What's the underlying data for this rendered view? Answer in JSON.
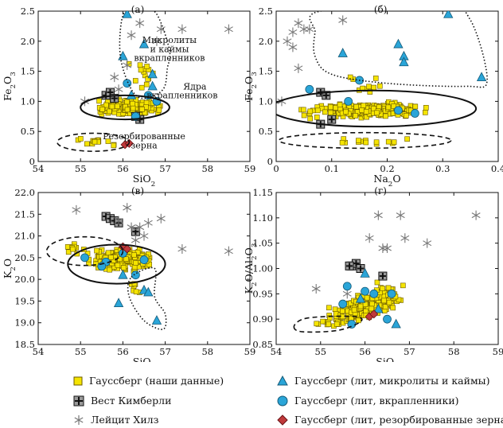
{
  "colors": {
    "yellow": "#f5e400",
    "yellow_edge": "#6b5a00",
    "blue": "#2aa5d8",
    "blue_edge": "#145a78",
    "red": "#c0393b",
    "gray": "#777777"
  },
  "chart_data": [
    {
      "type": "scatter",
      "panel_label": "(а)",
      "xlabel": "SiO2",
      "ylabel": "Fe2O3",
      "xlim": [
        54,
        59
      ],
      "ylim": [
        0,
        2.5
      ],
      "xticks": [
        "54",
        "55",
        "56",
        "57",
        "58",
        "59"
      ],
      "yticks": [
        "0",
        "0.5",
        "1.0",
        "1.5",
        "2.0",
        "2.5"
      ],
      "annotations": [
        {
          "text": "Микролиты",
          "x": 57.1,
          "y": 1.97
        },
        {
          "text": "и каймы",
          "x": 57.1,
          "y": 1.82
        },
        {
          "text": "вкрапленников",
          "x": 57.1,
          "y": 1.67
        },
        {
          "text": "Ядра",
          "x": 57.7,
          "y": 1.2
        },
        {
          "text": "вкрапленников",
          "x": 57.4,
          "y": 1.05
        },
        {
          "text": "Резорбированные",
          "x": 56.5,
          "y": 0.37
        },
        {
          "text": "зерна",
          "x": 56.5,
          "y": 0.22
        }
      ],
      "series": [
        {
          "key": "kimberley",
          "points": [
            [
              55.6,
              1.1
            ],
            [
              55.7,
              1.15
            ],
            [
              55.8,
              1.05
            ],
            [
              56.4,
              0.7
            ],
            [
              56.3,
              0.75
            ]
          ]
        },
        {
          "key": "leucite",
          "points": [
            [
              56.4,
              2.3
            ],
            [
              56.2,
              2.1
            ],
            [
              55.8,
              1.4
            ],
            [
              56.5,
              2.6
            ],
            [
              56.9,
              2.2
            ],
            [
              57.4,
              2.2
            ],
            [
              58.5,
              2.2
            ],
            [
              55.1,
              1.0
            ],
            [
              56.1,
              1.6
            ],
            [
              55.9,
              1.2
            ],
            [
              56.8,
              2.0
            ]
          ]
        },
        {
          "key": "micro",
          "points": [
            [
              56.1,
              2.45
            ],
            [
              56.0,
              1.75
            ],
            [
              56.5,
              1.95
            ],
            [
              56.7,
              1.45
            ],
            [
              56.7,
              1.25
            ],
            [
              56.2,
              1.1
            ]
          ]
        },
        {
          "key": "pheno",
          "points": [
            [
              56.1,
              1.3
            ],
            [
              56.6,
              1.1
            ],
            [
              56.3,
              0.75
            ],
            [
              56.8,
              1.0
            ]
          ]
        },
        {
          "key": "resorb",
          "points": [
            [
              56.05,
              0.28
            ],
            [
              56.15,
              0.3
            ]
          ]
        }
      ],
      "envelopes": [
        {
          "kind": "dotted",
          "shape": "polygon",
          "points": [
            [
              56.1,
              2.55
            ],
            [
              56.45,
              2.55
            ],
            [
              56.8,
              2.45
            ],
            [
              57.1,
              1.85
            ],
            [
              57.05,
              1.55
            ],
            [
              56.95,
              1.2
            ],
            [
              56.5,
              1.05
            ],
            [
              56.2,
              1.2
            ],
            [
              55.95,
              1.7
            ],
            [
              55.95,
              2.25
            ]
          ]
        },
        {
          "kind": "solid",
          "shape": "ellipse",
          "cx": 56.05,
          "cy": 0.9,
          "rx": 1.05,
          "ry": 0.2
        },
        {
          "kind": "dashed",
          "shape": "ellipse",
          "cx": 55.3,
          "cy": 0.32,
          "rx": 0.85,
          "ry": 0.15
        }
      ],
      "yellow_cloud": {
        "core": {
          "cx": 56.1,
          "cy": 0.9,
          "rx": 0.9,
          "ry": 0.17,
          "n": 230
        },
        "extra": {
          "cx": 56.4,
          "cy": 1.55,
          "rx": 0.45,
          "ry": 0.45,
          "n": 14
        },
        "low": {
          "cx": 55.3,
          "cy": 0.33,
          "rx": 0.7,
          "ry": 0.1,
          "n": 14
        }
      }
    },
    {
      "type": "scatter",
      "panel_label": "(б)",
      "xlabel": "Na2O",
      "ylabel": "Fe2O3",
      "xlim": [
        0,
        0.4
      ],
      "ylim": [
        0,
        2.5
      ],
      "xticks": [
        "0",
        "0.1",
        "0.2",
        "0.3",
        "0.4"
      ],
      "yticks": [
        "0",
        "0.5",
        "1.0",
        "1.5",
        "2.0",
        "2.5"
      ],
      "annotations": [],
      "series": [
        {
          "key": "kimberley",
          "points": [
            [
              0.08,
              1.15
            ],
            [
              0.09,
              1.1
            ],
            [
              0.1,
              0.7
            ],
            [
              0.08,
              0.62
            ]
          ]
        },
        {
          "key": "leucite",
          "points": [
            [
              0.03,
              2.15
            ],
            [
              0.04,
              2.3
            ],
            [
              0.05,
              2.2
            ],
            [
              0.06,
              2.2
            ],
            [
              0.12,
              2.35
            ],
            [
              0.04,
              1.55
            ],
            [
              0.02,
              2.0
            ],
            [
              0.01,
              1.0
            ],
            [
              0.03,
              1.9
            ]
          ]
        },
        {
          "key": "micro",
          "points": [
            [
              0.31,
              2.45
            ],
            [
              0.22,
              1.95
            ],
            [
              0.23,
              1.75
            ],
            [
              0.37,
              1.4
            ],
            [
              0.23,
              1.65
            ],
            [
              0.12,
              1.8
            ]
          ]
        },
        {
          "key": "pheno",
          "points": [
            [
              0.06,
              1.2
            ],
            [
              0.15,
              1.35
            ],
            [
              0.22,
              0.85
            ],
            [
              0.25,
              0.8
            ],
            [
              0.13,
              1.0
            ]
          ]
        },
        {
          "key": "resorb",
          "points": []
        }
      ],
      "envelopes": [
        {
          "kind": "dotted",
          "shape": "polygon",
          "points": [
            [
              0.08,
              2.5
            ],
            [
              0.3,
              2.55
            ],
            [
              0.35,
              2.35
            ],
            [
              0.38,
              1.35
            ],
            [
              0.34,
              1.25
            ],
            [
              0.2,
              1.3
            ],
            [
              0.1,
              1.45
            ],
            [
              0.07,
              1.75
            ],
            [
              0.07,
              2.15
            ]
          ]
        },
        {
          "kind": "solid",
          "shape": "ellipse",
          "cx": 0.175,
          "cy": 0.88,
          "rx": 0.185,
          "ry": 0.3
        },
        {
          "kind": "dashed",
          "shape": "ellipse",
          "cx": 0.16,
          "cy": 0.35,
          "rx": 0.155,
          "ry": 0.13
        }
      ],
      "yellow_cloud": {
        "core": {
          "cx": 0.16,
          "cy": 0.85,
          "rx": 0.14,
          "ry": 0.17,
          "n": 230
        },
        "extra": {
          "cx": 0.15,
          "cy": 1.3,
          "rx": 0.08,
          "ry": 0.25,
          "n": 10
        },
        "low": {
          "cx": 0.16,
          "cy": 0.33,
          "rx": 0.11,
          "ry": 0.07,
          "n": 14
        }
      }
    },
    {
      "type": "scatter",
      "panel_label": "(в)",
      "xlabel": "SiO2",
      "ylabel": "K2O",
      "xlim": [
        54,
        59
      ],
      "ylim": [
        18.5,
        22.0
      ],
      "xticks": [
        "54",
        "55",
        "56",
        "57",
        "58",
        "59"
      ],
      "yticks": [
        "18.5",
        "19.0",
        "19.5",
        "20.0",
        "20.5",
        "21.0",
        "21.5",
        "22.0"
      ],
      "annotations": [],
      "series": [
        {
          "key": "kimberley",
          "points": [
            [
              55.6,
              21.45
            ],
            [
              55.7,
              21.4
            ],
            [
              55.8,
              21.35
            ],
            [
              55.9,
              21.3
            ],
            [
              56.3,
              21.1
            ]
          ]
        },
        {
          "key": "leucite",
          "points": [
            [
              54.9,
              21.6
            ],
            [
              55.9,
              21.35
            ],
            [
              56.2,
              21.2
            ],
            [
              56.4,
              21.2
            ],
            [
              56.5,
              21.0
            ],
            [
              56.9,
              21.4
            ],
            [
              57.4,
              20.7
            ],
            [
              58.5,
              20.65
            ],
            [
              56.1,
              21.65
            ],
            [
              56.3,
              20.9
            ],
            [
              56.6,
              21.3
            ]
          ]
        },
        {
          "key": "micro",
          "points": [
            [
              56.5,
              19.75
            ],
            [
              56.6,
              19.7
            ],
            [
              55.9,
              19.45
            ],
            [
              56.8,
              19.05
            ],
            [
              56.0,
              20.1
            ]
          ]
        },
        {
          "key": "pheno",
          "points": [
            [
              55.1,
              20.5
            ],
            [
              55.6,
              20.4
            ],
            [
              56.0,
              20.6
            ],
            [
              56.3,
              20.1
            ],
            [
              56.5,
              20.45
            ],
            [
              55.5,
              20.3
            ]
          ]
        },
        {
          "key": "resorb",
          "points": [
            [
              56.0,
              20.75
            ],
            [
              56.1,
              20.7
            ]
          ]
        }
      ],
      "envelopes": [
        {
          "kind": "dashed",
          "shape": "ellipse",
          "cx": 55.1,
          "cy": 20.65,
          "rx": 0.9,
          "ry": 0.33
        },
        {
          "kind": "solid",
          "shape": "ellipse",
          "cx": 55.85,
          "cy": 20.35,
          "rx": 1.15,
          "ry": 0.45
        },
        {
          "kind": "dotted",
          "shape": "polygon",
          "points": [
            [
              56.2,
              20.05
            ],
            [
              56.75,
              20.25
            ],
            [
              56.75,
              19.6
            ],
            [
              57.0,
              19.2
            ],
            [
              56.95,
              18.85
            ],
            [
              56.5,
              19.05
            ],
            [
              56.15,
              19.6
            ]
          ]
        }
      ],
      "yellow_cloud": {
        "core": {
          "cx": 55.9,
          "cy": 20.45,
          "rx": 0.95,
          "ry": 0.3,
          "n": 230
        },
        "extra": {
          "cx": 55.0,
          "cy": 20.7,
          "rx": 0.5,
          "ry": 0.15,
          "n": 12
        },
        "low": {
          "cx": 56.3,
          "cy": 19.8,
          "rx": 0.3,
          "ry": 0.2,
          "n": 8
        }
      }
    },
    {
      "type": "scatter",
      "panel_label": "(г)",
      "xlabel": "SiO2",
      "ylabel": "K2O/Al2O3",
      "xlim": [
        54,
        59
      ],
      "ylim": [
        0.85,
        1.15
      ],
      "xticks": [
        "54",
        "55",
        "56",
        "57",
        "58",
        "59"
      ],
      "yticks": [
        "0.85",
        "0.90",
        "0.95",
        "1.00",
        "1.05",
        "1.10",
        "1.15"
      ],
      "annotations": [],
      "series": [
        {
          "key": "kimberley",
          "points": [
            [
              55.7,
              1.005
            ],
            [
              55.8,
              1.01
            ],
            [
              55.9,
              1.0
            ],
            [
              56.4,
              0.985
            ],
            [
              55.65,
              1.005
            ]
          ]
        },
        {
          "key": "leucite",
          "points": [
            [
              56.3,
              1.105
            ],
            [
              56.8,
              1.105
            ],
            [
              58.5,
              1.105
            ],
            [
              56.1,
              1.06
            ],
            [
              56.5,
              1.04
            ],
            [
              56.9,
              1.06
            ],
            [
              57.4,
              1.05
            ],
            [
              54.9,
              0.96
            ],
            [
              56.4,
              1.04
            ],
            [
              55.6,
              0.95
            ]
          ]
        },
        {
          "key": "micro",
          "points": [
            [
              56.0,
              0.99
            ],
            [
              56.7,
              0.89
            ],
            [
              55.9,
              0.94
            ],
            [
              56.3,
              0.92
            ]
          ]
        },
        {
          "key": "pheno",
          "points": [
            [
              55.6,
              0.965
            ],
            [
              55.5,
              0.93
            ],
            [
              56.0,
              0.955
            ],
            [
              56.2,
              0.95
            ],
            [
              56.5,
              0.9
            ],
            [
              56.6,
              0.95
            ],
            [
              55.7,
              0.89
            ]
          ]
        },
        {
          "key": "resorb",
          "points": [
            [
              56.1,
              0.905
            ],
            [
              56.2,
              0.91
            ]
          ]
        }
      ],
      "envelopes": [
        {
          "kind": "dashed",
          "shape": "polygon",
          "points": [
            [
              54.4,
              0.885
            ],
            [
              54.6,
              0.875
            ],
            [
              55.4,
              0.878
            ],
            [
              55.9,
              0.895
            ],
            [
              55.8,
              0.905
            ],
            [
              55.1,
              0.905
            ],
            [
              54.6,
              0.9
            ]
          ]
        }
      ],
      "yellow_cloud": {
        "core": {
          "cx": 56.0,
          "cy": 0.925,
          "rx": 0.95,
          "ry": 0.03,
          "tilt": 0.025,
          "n": 260
        },
        "extra": {
          "cx": 56.4,
          "cy": 0.96,
          "rx": 0.4,
          "ry": 0.015,
          "n": 10
        },
        "low": {
          "cx": 55.2,
          "cy": 0.89,
          "rx": 0.6,
          "ry": 0.01,
          "n": 10
        }
      }
    }
  ],
  "legend": [
    {
      "key": "yellow",
      "label": "Гауссберг (наши данные)"
    },
    {
      "key": "kimberley",
      "label": "Вест Кимберли"
    },
    {
      "key": "leucite",
      "label": "Лейцит Хилз"
    },
    {
      "key": "micro",
      "label": "Гауссберг (лит, микролиты и каймы)"
    },
    {
      "key": "pheno",
      "label": "Гауссберг (лит, вкрапленники)"
    },
    {
      "key": "resorb",
      "label": "Гауссберг (лит, резорбированные зерна)"
    }
  ]
}
